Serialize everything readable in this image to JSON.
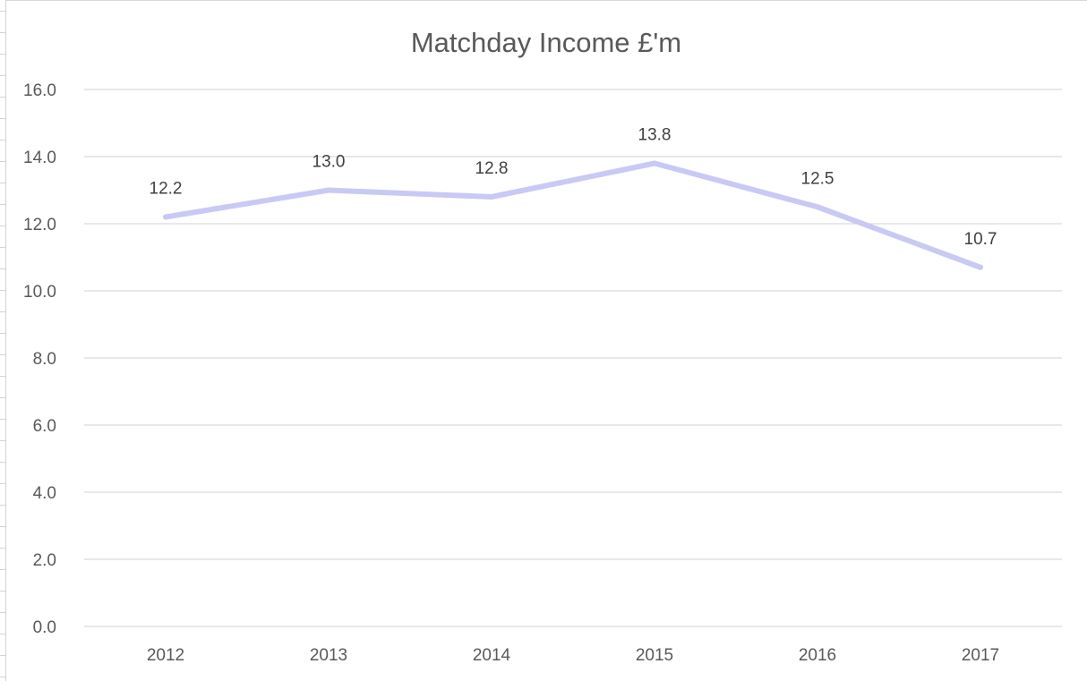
{
  "chart_data": {
    "type": "line",
    "title": "Matchday Income £'m",
    "xlabel": "",
    "ylabel": "",
    "categories": [
      "2012",
      "2013",
      "2014",
      "2015",
      "2016",
      "2017"
    ],
    "series": [
      {
        "values": [
          12.2,
          13.0,
          12.8,
          13.8,
          12.5,
          10.7
        ],
        "color": "#c9c9f5"
      }
    ],
    "data_labels": [
      "12.2",
      "13.0",
      "12.8",
      "13.8",
      "12.5",
      "10.7"
    ],
    "ylim": [
      0,
      16
    ],
    "yticks": [
      "0.0",
      "2.0",
      "4.0",
      "6.0",
      "8.0",
      "10.0",
      "12.0",
      "14.0",
      "16.0"
    ],
    "grid": true,
    "legend": "none",
    "colors": {
      "gridline": "#d9d9d9",
      "text": "#595959",
      "data_label": "#404040"
    }
  }
}
